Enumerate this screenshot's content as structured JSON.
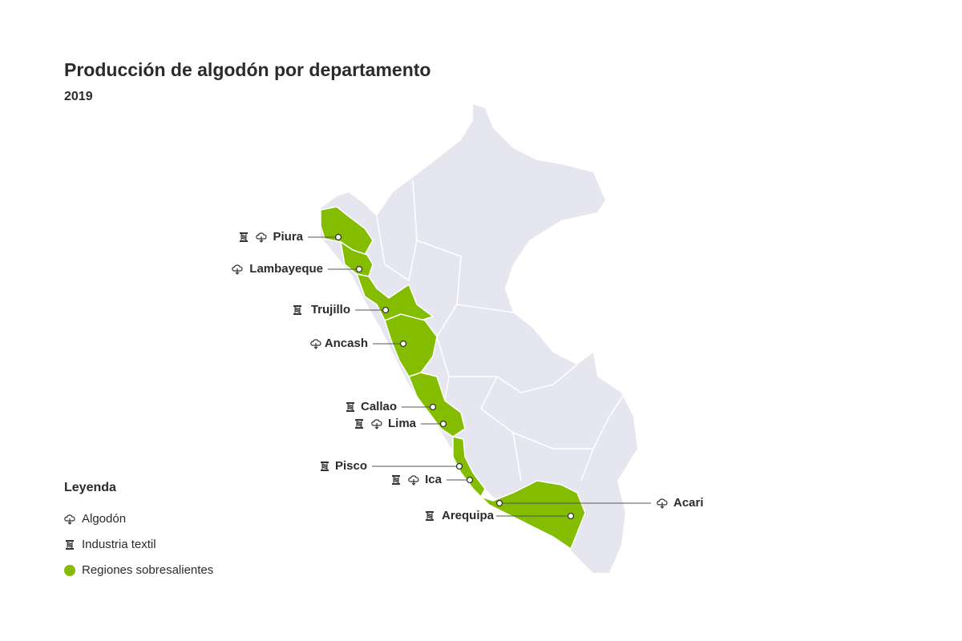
{
  "header": {
    "title": "Producción de algodón por departamento",
    "subtitle": "2019"
  },
  "locations": [
    {
      "label": "Piura"
    },
    {
      "label": "Lambayeque"
    },
    {
      "label": "Trujillo"
    },
    {
      "label": "Ancash"
    },
    {
      "label": "Callao"
    },
    {
      "label": "Lima"
    },
    {
      "label": "Pisco"
    },
    {
      "label": "Ica"
    },
    {
      "label": "Arequipa"
    },
    {
      "label": "Acari"
    }
  ],
  "legend": {
    "title": "Leyenda",
    "items": [
      "Algodón",
      "Industria textil",
      "Regiones sobresalientes"
    ]
  }
}
